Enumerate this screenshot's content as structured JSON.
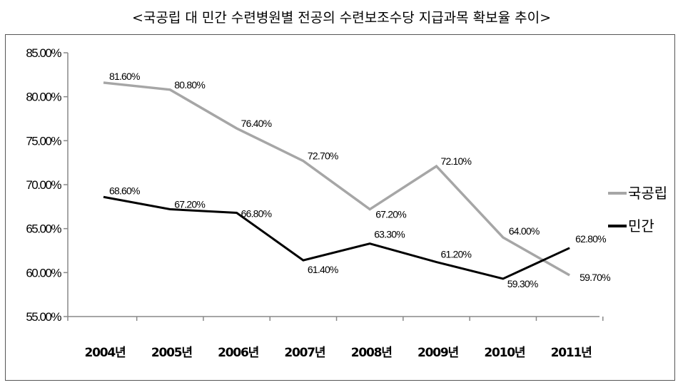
{
  "chart_data": {
    "type": "line",
    "title": "<국공립 대 민간 수련병원별 전공의 수련보조수당 지급과목 확보율 추이>",
    "categories": [
      "2004년",
      "2005년",
      "2006년",
      "2007년",
      "2008년",
      "2009년",
      "2010년",
      "2011년"
    ],
    "series": [
      {
        "name": "국공립",
        "color": "#a6a6a6",
        "values": [
          81.6,
          80.8,
          76.4,
          72.7,
          67.2,
          72.1,
          64.0,
          59.7
        ],
        "labels": [
          "81.60%",
          "80.80%",
          "76.40%",
          "72.70%",
          "67.20%",
          "72.10%",
          "64.00%",
          "59.70%"
        ]
      },
      {
        "name": "민간",
        "color": "#000000",
        "values": [
          68.6,
          67.2,
          66.8,
          61.4,
          63.3,
          61.2,
          59.3,
          62.8
        ],
        "labels": [
          "68.60%",
          "67.20%",
          "66.80%",
          "61.40%",
          "63.30%",
          "61.20%",
          "59.30%",
          "62.80%"
        ]
      }
    ],
    "ylim": [
      55,
      85
    ],
    "yticks": [
      55,
      60,
      65,
      70,
      75,
      80,
      85
    ],
    "ytick_labels": [
      "55.00%",
      "60.00%",
      "65.00%",
      "70.00%",
      "75.00%",
      "80.00%",
      "85.00%"
    ],
    "grid": false,
    "legend_position": "right"
  }
}
